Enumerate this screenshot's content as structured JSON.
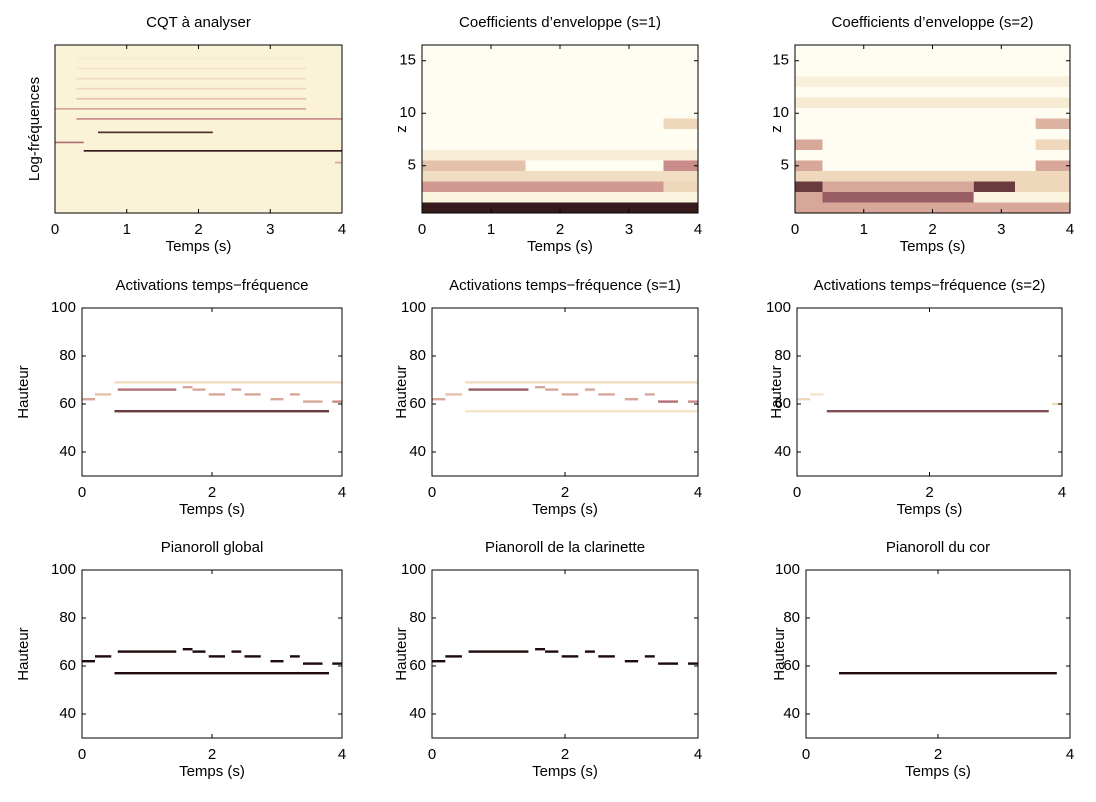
{
  "colormap": [
    "#fffdeb",
    "#ecd3b4",
    "#c27a80",
    "#1e0a0a"
  ],
  "chart_data": [
    {
      "type": "heatmap",
      "title": "CQT à analyser",
      "xlabel": "Temps (s)",
      "ylabel": "Log-fréquences",
      "xlim": [
        0,
        4
      ],
      "xticks": [
        0,
        1,
        2,
        3,
        4
      ],
      "ylim": [
        0,
        100
      ],
      "yticks": [],
      "background": "#fbf3d8",
      "notes": [
        {
          "start": 0,
          "end": 0.4,
          "y": 42,
          "intensity": 0.7
        },
        {
          "start": 0.4,
          "end": 4,
          "y": 37,
          "intensity": 0.95
        },
        {
          "start": 0.6,
          "end": 2.2,
          "y": 48,
          "intensity": 0.9
        },
        {
          "start": 0.3,
          "end": 4,
          "y": 56,
          "intensity": 0.6
        },
        {
          "start": 0,
          "end": 3.5,
          "y": 62,
          "intensity": 0.5
        },
        {
          "start": 0.3,
          "end": 3.5,
          "y": 68,
          "intensity": 0.4
        },
        {
          "start": 0.3,
          "end": 3.5,
          "y": 74,
          "intensity": 0.3
        },
        {
          "start": 0.3,
          "end": 3.5,
          "y": 80,
          "intensity": 0.25
        },
        {
          "start": 0.3,
          "end": 3.5,
          "y": 86,
          "intensity": 0.2
        },
        {
          "start": 0.3,
          "end": 3.5,
          "y": 92,
          "intensity": 0.15
        },
        {
          "start": 3.9,
          "end": 4,
          "y": 30,
          "intensity": 0.5
        }
      ]
    },
    {
      "type": "heatmap",
      "title": "Coefficients d’enveloppe (s=1)",
      "xlabel": "Temps (s)",
      "ylabel": "z",
      "xlim": [
        0,
        4
      ],
      "xticks": [
        0,
        1,
        2,
        3,
        4
      ],
      "ylim": [
        0.5,
        16.5
      ],
      "yticks": [
        5,
        10,
        15
      ],
      "background": "#fffdf2",
      "notes": [
        {
          "start": 0,
          "end": 4,
          "y": 1,
          "intensity": 0.95
        },
        {
          "start": 0,
          "end": 4,
          "y": 2,
          "intensity": 0.08
        },
        {
          "start": 0,
          "end": 3.5,
          "y": 3,
          "intensity": 0.55
        },
        {
          "start": 3.5,
          "end": 4,
          "y": 3,
          "intensity": 0.3
        },
        {
          "start": 0,
          "end": 4,
          "y": 4,
          "intensity": 0.25
        },
        {
          "start": 0,
          "end": 1.5,
          "y": 5,
          "intensity": 0.4
        },
        {
          "start": 3.5,
          "end": 4,
          "y": 5,
          "intensity": 0.6
        },
        {
          "start": 0,
          "end": 4,
          "y": 6,
          "intensity": 0.12
        },
        {
          "start": 3.5,
          "end": 4,
          "y": 9,
          "intensity": 0.3
        }
      ]
    },
    {
      "type": "heatmap",
      "title": "Coefficients d’enveloppe (s=2)",
      "xlabel": "Temps (s)",
      "ylabel": "z",
      "xlim": [
        0,
        4
      ],
      "xticks": [
        0,
        1,
        2,
        3,
        4
      ],
      "ylim": [
        0.5,
        16.5
      ],
      "yticks": [
        5,
        10,
        15
      ],
      "background": "#fffdf2",
      "notes": [
        {
          "start": 0,
          "end": 4,
          "y": 1,
          "intensity": 0.5
        },
        {
          "start": 0,
          "end": 0.4,
          "y": 2,
          "intensity": 0.5
        },
        {
          "start": 0.4,
          "end": 2.6,
          "y": 2,
          "intensity": 0.75
        },
        {
          "start": 2.6,
          "end": 4,
          "y": 2,
          "intensity": 0.08
        },
        {
          "start": 0,
          "end": 0.4,
          "y": 3,
          "intensity": 0.85
        },
        {
          "start": 0.4,
          "end": 2.6,
          "y": 3,
          "intensity": 0.5
        },
        {
          "start": 2.6,
          "end": 3.2,
          "y": 3,
          "intensity": 0.85
        },
        {
          "start": 3.2,
          "end": 4,
          "y": 3,
          "intensity": 0.3
        },
        {
          "start": 0,
          "end": 4,
          "y": 4,
          "intensity": 0.3
        },
        {
          "start": 0,
          "end": 0.4,
          "y": 5,
          "intensity": 0.5
        },
        {
          "start": 3.5,
          "end": 4,
          "y": 5,
          "intensity": 0.5
        },
        {
          "start": 0,
          "end": 0.4,
          "y": 7,
          "intensity": 0.5
        },
        {
          "start": 3.5,
          "end": 4,
          "y": 7,
          "intensity": 0.3
        },
        {
          "start": 3.5,
          "end": 4,
          "y": 9,
          "intensity": 0.45
        },
        {
          "start": 0,
          "end": 4,
          "y": 11,
          "intensity": 0.15
        },
        {
          "start": 0,
          "end": 4,
          "y": 13,
          "intensity": 0.1
        }
      ]
    },
    {
      "type": "heatmap",
      "title": "Activations temps−fréquence",
      "xlabel": "Temps (s)",
      "ylabel": "Hauteur",
      "xlim": [
        0,
        4
      ],
      "xticks": [
        0,
        2,
        4
      ],
      "ylim": [
        30,
        100
      ],
      "yticks": [
        40,
        60,
        80,
        100
      ],
      "background": "#ffffff",
      "notes": [
        {
          "start": 0,
          "end": 0.2,
          "y": 62,
          "intensity": 0.5
        },
        {
          "start": 0.2,
          "end": 0.45,
          "y": 64,
          "intensity": 0.4
        },
        {
          "start": 0.55,
          "end": 1.45,
          "y": 66,
          "intensity": 0.7
        },
        {
          "start": 0.5,
          "end": 3.8,
          "y": 57,
          "intensity": 0.85
        },
        {
          "start": 0.5,
          "end": 4,
          "y": 69,
          "intensity": 0.25
        },
        {
          "start": 1.55,
          "end": 1.7,
          "y": 67,
          "intensity": 0.5
        },
        {
          "start": 1.7,
          "end": 1.9,
          "y": 66,
          "intensity": 0.5
        },
        {
          "start": 1.95,
          "end": 2.2,
          "y": 64,
          "intensity": 0.5
        },
        {
          "start": 2.3,
          "end": 2.45,
          "y": 66,
          "intensity": 0.5
        },
        {
          "start": 2.5,
          "end": 2.75,
          "y": 64,
          "intensity": 0.5
        },
        {
          "start": 2.9,
          "end": 3.1,
          "y": 62,
          "intensity": 0.5
        },
        {
          "start": 3.2,
          "end": 3.35,
          "y": 64,
          "intensity": 0.5
        },
        {
          "start": 3.4,
          "end": 3.7,
          "y": 61,
          "intensity": 0.5
        },
        {
          "start": 3.85,
          "end": 4,
          "y": 61,
          "intensity": 0.6
        }
      ]
    },
    {
      "type": "heatmap",
      "title": "Activations temps−fréquence (s=1)",
      "xlabel": "Temps (s)",
      "ylabel": "Hauteur",
      "xlim": [
        0,
        4
      ],
      "xticks": [
        0,
        2,
        4
      ],
      "ylim": [
        30,
        100
      ],
      "yticks": [
        40,
        60,
        80,
        100
      ],
      "background": "#ffffff",
      "notes": [
        {
          "start": 0,
          "end": 0.2,
          "y": 62,
          "intensity": 0.5
        },
        {
          "start": 0.2,
          "end": 0.45,
          "y": 64,
          "intensity": 0.4
        },
        {
          "start": 0.55,
          "end": 1.45,
          "y": 66,
          "intensity": 0.75
        },
        {
          "start": 0.5,
          "end": 4,
          "y": 57,
          "intensity": 0.2
        },
        {
          "start": 0.5,
          "end": 4,
          "y": 69,
          "intensity": 0.25
        },
        {
          "start": 1.55,
          "end": 1.7,
          "y": 67,
          "intensity": 0.5
        },
        {
          "start": 1.7,
          "end": 1.9,
          "y": 66,
          "intensity": 0.5
        },
        {
          "start": 1.95,
          "end": 2.2,
          "y": 64,
          "intensity": 0.5
        },
        {
          "start": 2.3,
          "end": 2.45,
          "y": 66,
          "intensity": 0.5
        },
        {
          "start": 2.5,
          "end": 2.75,
          "y": 64,
          "intensity": 0.5
        },
        {
          "start": 2.9,
          "end": 3.1,
          "y": 62,
          "intensity": 0.5
        },
        {
          "start": 3.2,
          "end": 3.35,
          "y": 64,
          "intensity": 0.5
        },
        {
          "start": 3.4,
          "end": 3.7,
          "y": 61,
          "intensity": 0.7
        },
        {
          "start": 3.85,
          "end": 4,
          "y": 61,
          "intensity": 0.6
        }
      ]
    },
    {
      "type": "heatmap",
      "title": "Activations temps−fréquence (s=2)",
      "xlabel": "Temps (s)",
      "ylabel": "Hauteur",
      "xlim": [
        0,
        4
      ],
      "xticks": [
        0,
        2,
        4
      ],
      "ylim": [
        30,
        100
      ],
      "yticks": [
        40,
        60,
        80,
        100
      ],
      "background": "#ffffff",
      "notes": [
        {
          "start": 0,
          "end": 0.2,
          "y": 62,
          "intensity": 0.3
        },
        {
          "start": 0.2,
          "end": 0.4,
          "y": 64,
          "intensity": 0.2
        },
        {
          "start": 0.45,
          "end": 3.8,
          "y": 57,
          "intensity": 0.8
        },
        {
          "start": 3.85,
          "end": 4,
          "y": 60,
          "intensity": 0.25
        }
      ]
    },
    {
      "type": "heatmap",
      "title": "Pianoroll global",
      "xlabel": "Temps (s)",
      "ylabel": "Hauteur",
      "xlim": [
        0,
        4
      ],
      "xticks": [
        0,
        2,
        4
      ],
      "ylim": [
        30,
        100
      ],
      "yticks": [
        40,
        60,
        80,
        100
      ],
      "background": "#ffffff",
      "notes": [
        {
          "start": 0,
          "end": 0.2,
          "y": 62,
          "intensity": 1
        },
        {
          "start": 0.2,
          "end": 0.45,
          "y": 64,
          "intensity": 1
        },
        {
          "start": 0.55,
          "end": 1.45,
          "y": 66,
          "intensity": 1
        },
        {
          "start": 0.5,
          "end": 3.8,
          "y": 57,
          "intensity": 1
        },
        {
          "start": 1.55,
          "end": 1.7,
          "y": 67,
          "intensity": 1
        },
        {
          "start": 1.7,
          "end": 1.9,
          "y": 66,
          "intensity": 1
        },
        {
          "start": 1.95,
          "end": 2.2,
          "y": 64,
          "intensity": 1
        },
        {
          "start": 2.3,
          "end": 2.45,
          "y": 66,
          "intensity": 1
        },
        {
          "start": 2.5,
          "end": 2.75,
          "y": 64,
          "intensity": 1
        },
        {
          "start": 2.9,
          "end": 3.1,
          "y": 62,
          "intensity": 1
        },
        {
          "start": 3.2,
          "end": 3.35,
          "y": 64,
          "intensity": 1
        },
        {
          "start": 3.4,
          "end": 3.7,
          "y": 61,
          "intensity": 1
        },
        {
          "start": 3.85,
          "end": 4,
          "y": 61,
          "intensity": 1
        }
      ]
    },
    {
      "type": "heatmap",
      "title": "Pianoroll de la clarinette",
      "xlabel": "Temps (s)",
      "ylabel": "Hauteur",
      "xlim": [
        0,
        4
      ],
      "xticks": [
        0,
        2,
        4
      ],
      "ylim": [
        30,
        100
      ],
      "yticks": [
        40,
        60,
        80,
        100
      ],
      "background": "#ffffff",
      "notes": [
        {
          "start": 0,
          "end": 0.2,
          "y": 62,
          "intensity": 1
        },
        {
          "start": 0.2,
          "end": 0.45,
          "y": 64,
          "intensity": 1
        },
        {
          "start": 0.55,
          "end": 1.45,
          "y": 66,
          "intensity": 1
        },
        {
          "start": 1.55,
          "end": 1.7,
          "y": 67,
          "intensity": 1
        },
        {
          "start": 1.7,
          "end": 1.9,
          "y": 66,
          "intensity": 1
        },
        {
          "start": 1.95,
          "end": 2.2,
          "y": 64,
          "intensity": 1
        },
        {
          "start": 2.3,
          "end": 2.45,
          "y": 66,
          "intensity": 1
        },
        {
          "start": 2.5,
          "end": 2.75,
          "y": 64,
          "intensity": 1
        },
        {
          "start": 2.9,
          "end": 3.1,
          "y": 62,
          "intensity": 1
        },
        {
          "start": 3.2,
          "end": 3.35,
          "y": 64,
          "intensity": 1
        },
        {
          "start": 3.4,
          "end": 3.7,
          "y": 61,
          "intensity": 1
        },
        {
          "start": 3.85,
          "end": 4,
          "y": 61,
          "intensity": 1
        }
      ]
    },
    {
      "type": "heatmap",
      "title": "Pianoroll du cor",
      "xlabel": "Temps (s)",
      "ylabel": "Hauteur",
      "xlim": [
        0,
        4
      ],
      "xticks": [
        0,
        2,
        4
      ],
      "ylim": [
        30,
        100
      ],
      "yticks": [
        40,
        60,
        80,
        100
      ],
      "background": "#ffffff",
      "notes": [
        {
          "start": 0.5,
          "end": 3.8,
          "y": 57,
          "intensity": 1
        }
      ]
    }
  ]
}
